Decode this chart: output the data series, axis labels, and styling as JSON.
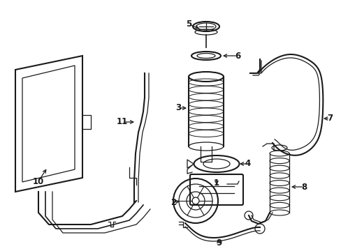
{
  "bg_color": "#ffffff",
  "line_color": "#1a1a1a",
  "label_color": "#1a1a1a",
  "figsize": [
    4.89,
    3.6
  ],
  "dpi": 100,
  "xlim": [
    0,
    489
  ],
  "ylim": [
    0,
    360
  ]
}
